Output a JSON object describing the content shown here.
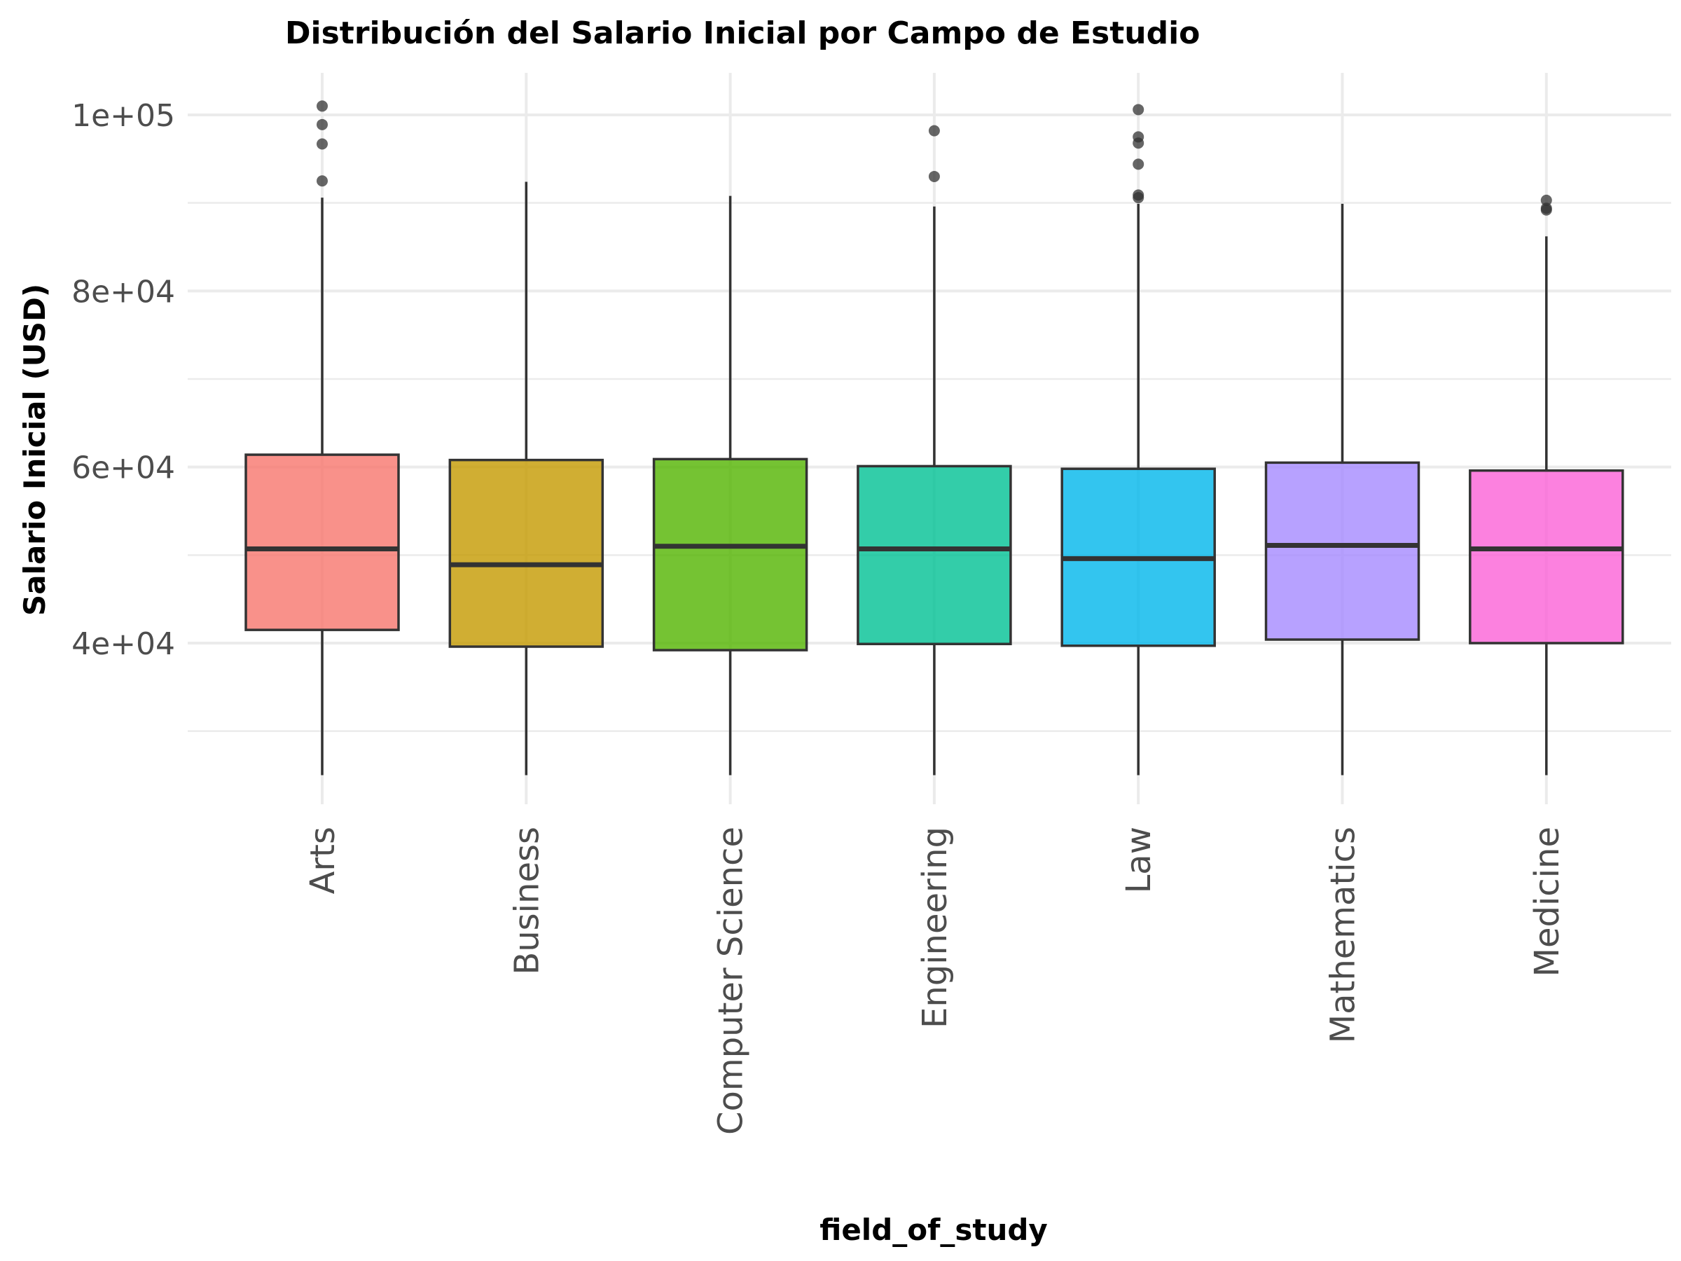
{
  "chart_data": {
    "type": "boxplot",
    "title": "Distribución del Salario Inicial por Campo de Estudio",
    "xlabel": "field_of_study",
    "ylabel": "Salario Inicial (USD)",
    "ylim": [
      24000,
      105000
    ],
    "y_ticks": [
      40000,
      60000,
      80000,
      100000
    ],
    "y_tick_labels": [
      "4e+04",
      "6e+04",
      "8e+04",
      "1e+05"
    ],
    "y_minor_ticks": [
      30000,
      50000,
      70000,
      90000
    ],
    "grid": true,
    "legend": "none",
    "categories": [
      "Arts",
      "Business",
      "Computer Science",
      "Engineering",
      "Law",
      "Mathematics",
      "Medicine"
    ],
    "boxes": [
      {
        "name": "Arts",
        "color": "#F8766D",
        "whisker_low": 25000,
        "q1": 41500,
        "median": 50700,
        "q3": 61400,
        "whisker_high": 90600,
        "outliers": [
          92500,
          96700,
          98900,
          101000
        ]
      },
      {
        "name": "Business",
        "color": "#C49A00",
        "whisker_low": 25000,
        "q1": 39600,
        "median": 48900,
        "q3": 60800,
        "whisker_high": 92400,
        "outliers": []
      },
      {
        "name": "Computer Science",
        "color": "#53B400",
        "whisker_low": 25000,
        "q1": 39200,
        "median": 51000,
        "q3": 60900,
        "whisker_high": 90800,
        "outliers": []
      },
      {
        "name": "Engineering",
        "color": "#00C094",
        "whisker_low": 25000,
        "q1": 39900,
        "median": 50700,
        "q3": 60100,
        "whisker_high": 89600,
        "outliers": [
          93000,
          98200
        ]
      },
      {
        "name": "Law",
        "color": "#00B6EB",
        "whisker_low": 25000,
        "q1": 39700,
        "median": 49600,
        "q3": 59800,
        "whisker_high": 89900,
        "outliers": [
          90600,
          90900,
          94400,
          96800,
          97500,
          100600
        ]
      },
      {
        "name": "Mathematics",
        "color": "#A58AFF",
        "whisker_low": 25000,
        "q1": 40400,
        "median": 51100,
        "q3": 60500,
        "whisker_high": 89900,
        "outliers": []
      },
      {
        "name": "Medicine",
        "color": "#FB61D7",
        "whisker_low": 25000,
        "q1": 40000,
        "median": 50700,
        "q3": 59600,
        "whisker_high": 86200,
        "outliers": [
          89200,
          89400,
          90300
        ]
      }
    ]
  }
}
